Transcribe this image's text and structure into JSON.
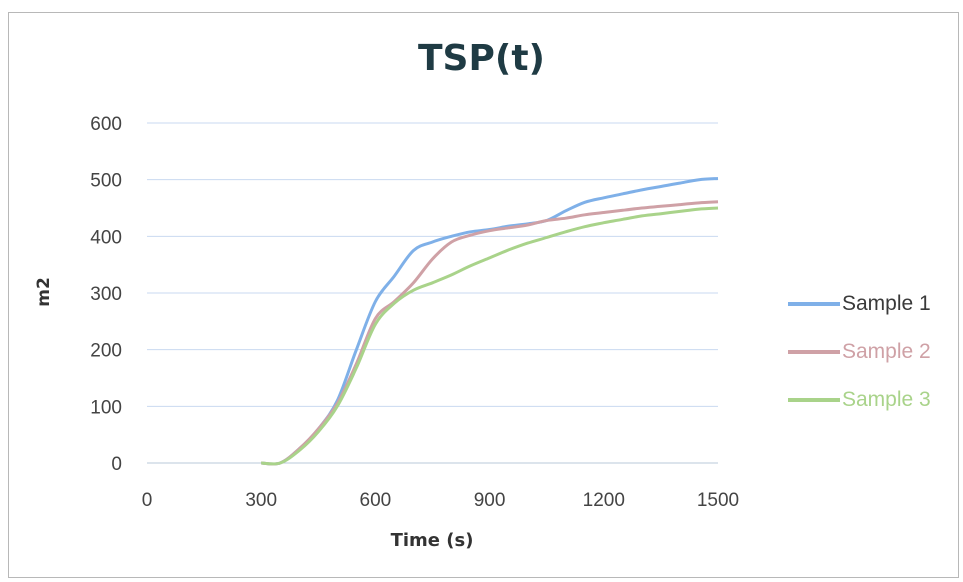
{
  "chart_data": {
    "type": "line",
    "title": "TSP(t)",
    "xlabel": "Time (s)",
    "ylabel": "m2",
    "xlim": [
      0,
      1500
    ],
    "ylim": [
      0,
      600
    ],
    "xticks": [
      0,
      300,
      600,
      900,
      1200,
      1500
    ],
    "yticks": [
      0,
      100,
      200,
      300,
      400,
      500,
      600
    ],
    "grid": "horizontal",
    "legend_position": "right",
    "series": [
      {
        "name": "Sample 1",
        "color": "#7fb0e8",
        "x": [
          300,
          350,
          400,
          450,
          500,
          550,
          600,
          650,
          700,
          750,
          800,
          850,
          900,
          950,
          1000,
          1050,
          1100,
          1150,
          1200,
          1250,
          1300,
          1350,
          1400,
          1450,
          1500
        ],
        "y": [
          0,
          0,
          25,
          60,
          110,
          200,
          285,
          330,
          375,
          390,
          400,
          408,
          412,
          418,
          422,
          428,
          445,
          460,
          468,
          475,
          482,
          488,
          494,
          500,
          502
        ]
      },
      {
        "name": "Sample 2",
        "color": "#cfa1a6",
        "x": [
          300,
          350,
          400,
          450,
          500,
          550,
          600,
          650,
          700,
          750,
          800,
          850,
          900,
          950,
          1000,
          1050,
          1100,
          1150,
          1200,
          1250,
          1300,
          1350,
          1400,
          1450,
          1500
        ],
        "y": [
          0,
          0,
          25,
          60,
          105,
          175,
          255,
          285,
          318,
          360,
          390,
          402,
          410,
          415,
          420,
          428,
          432,
          438,
          442,
          446,
          450,
          453,
          456,
          459,
          461
        ]
      },
      {
        "name": "Sample 3",
        "color": "#a9d38a",
        "x": [
          300,
          350,
          400,
          450,
          500,
          550,
          600,
          650,
          700,
          750,
          800,
          850,
          900,
          950,
          1000,
          1050,
          1100,
          1150,
          1200,
          1250,
          1300,
          1350,
          1400,
          1450,
          1500
        ],
        "y": [
          0,
          0,
          22,
          55,
          100,
          168,
          245,
          282,
          305,
          318,
          332,
          348,
          362,
          376,
          388,
          398,
          408,
          417,
          424,
          430,
          436,
          440,
          444,
          448,
          450
        ]
      }
    ]
  }
}
